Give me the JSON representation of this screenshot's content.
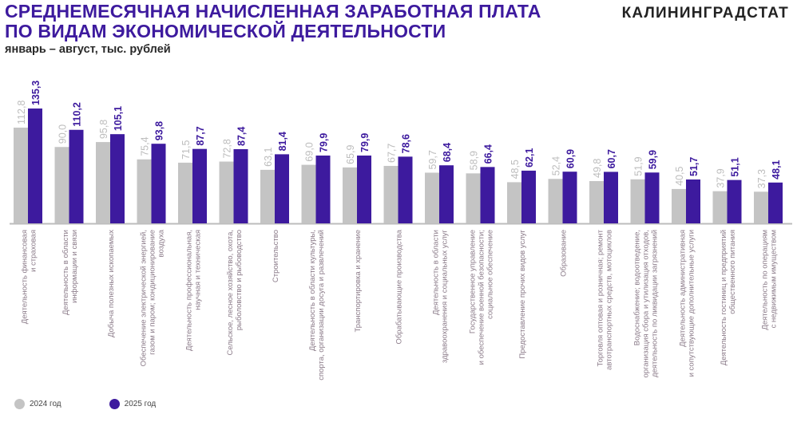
{
  "header": {
    "title_line1": "СРЕДНЕМЕСЯЧНАЯ НАЧИСЛЕННАЯ ЗАРАБОТНАЯ ПЛАТА",
    "title_line2": "ПО ВИДАМ ЭКОНОМИЧЕСКОЙ ДЕЯТЕЛЬНОСТИ",
    "subtitle": "январь – август, тыс. рублей",
    "brand": "КАЛИНИНГРАДСТАТ"
  },
  "colors": {
    "title": "#3d1a9e",
    "series2024": "#c4c4c4",
    "series2025": "#3d1a9e",
    "label2024": "#bdbdbd",
    "category": "#8a7a88"
  },
  "chart_data": {
    "type": "bar",
    "title": "Среднемесячная начисленная заработная плата по видам экономической деятельности",
    "xlabel": "",
    "ylabel": "тыс. рублей",
    "ylim": [
      0,
      140
    ],
    "legend_position": "bottom-left",
    "categories": [
      [
        "Деятельность финансовая",
        "и страховая"
      ],
      [
        "Деятельность в области",
        "информации и связи"
      ],
      [
        "Добыча полезных ископаемых"
      ],
      [
        "Обеспечение электрической энергией,",
        "газом и паром; кондиционирование",
        "воздуха"
      ],
      [
        "Деятельность профессиональная,",
        "научная и техническая"
      ],
      [
        "Сельское, лесное хозяйство, охота,",
        "рыболовство и рыбоводство"
      ],
      [
        "Строительство"
      ],
      [
        "Деятельность в области культуры,",
        "спорта, организации досуга и развлечений"
      ],
      [
        "Транспортировка и хранение"
      ],
      [
        "Обрабатывающие производства"
      ],
      [
        "Деятельность в области",
        "здравоохранения и социальных услуг"
      ],
      [
        "Государственное управление",
        "и обеспечение военной безопасности;",
        "социальное обеспечение"
      ],
      [
        "Предоставление прочих видов услуг"
      ],
      [
        "Образование"
      ],
      [
        "Торговля оптовая и розничная; ремонт",
        "автотранспортных средств, мотоциклов"
      ],
      [
        "Водоснабжение; водоотведение,",
        "организация сбора и утилизация отходов,",
        "деятельность по ликвидации загрязнений"
      ],
      [
        "Деятельность административная",
        "и сопутствующие дополнительные услуги"
      ],
      [
        "Деятельность гостиниц и предприятий",
        "общественного питания"
      ],
      [
        "Деятельность по операциям",
        "с недвижимым имуществом"
      ]
    ],
    "series": [
      {
        "name": "2024 год",
        "values": [
          112.8,
          90.0,
          95.8,
          75.4,
          71.5,
          72.8,
          63.1,
          69.0,
          65.9,
          67.7,
          59.7,
          58.9,
          48.5,
          52.4,
          49.8,
          51.9,
          40.5,
          37.9,
          37.3
        ],
        "labels": [
          "112,8",
          "90,0",
          "95,8",
          "75,4",
          "71,5",
          "72,8",
          "63,1",
          "69,0",
          "65,9",
          "67,7",
          "59,7",
          "58,9",
          "48,5",
          "52,4",
          "49,8",
          "51,9",
          "40,5",
          "37,9",
          "37,3"
        ]
      },
      {
        "name": "2025 год",
        "values": [
          135.3,
          110.2,
          105.1,
          93.8,
          87.7,
          87.4,
          81.4,
          79.9,
          79.9,
          78.6,
          68.4,
          66.4,
          62.1,
          60.9,
          60.7,
          59.9,
          51.7,
          51.1,
          48.1
        ],
        "labels": [
          "135,3",
          "110,2",
          "105,1",
          "93,8",
          "87,7",
          "87,4",
          "81,4",
          "79,9",
          "79,9",
          "78,6",
          "68,4",
          "66,4",
          "62,1",
          "60,9",
          "60,7",
          "59,9",
          "51,7",
          "51,1",
          "48,1"
        ]
      }
    ]
  }
}
